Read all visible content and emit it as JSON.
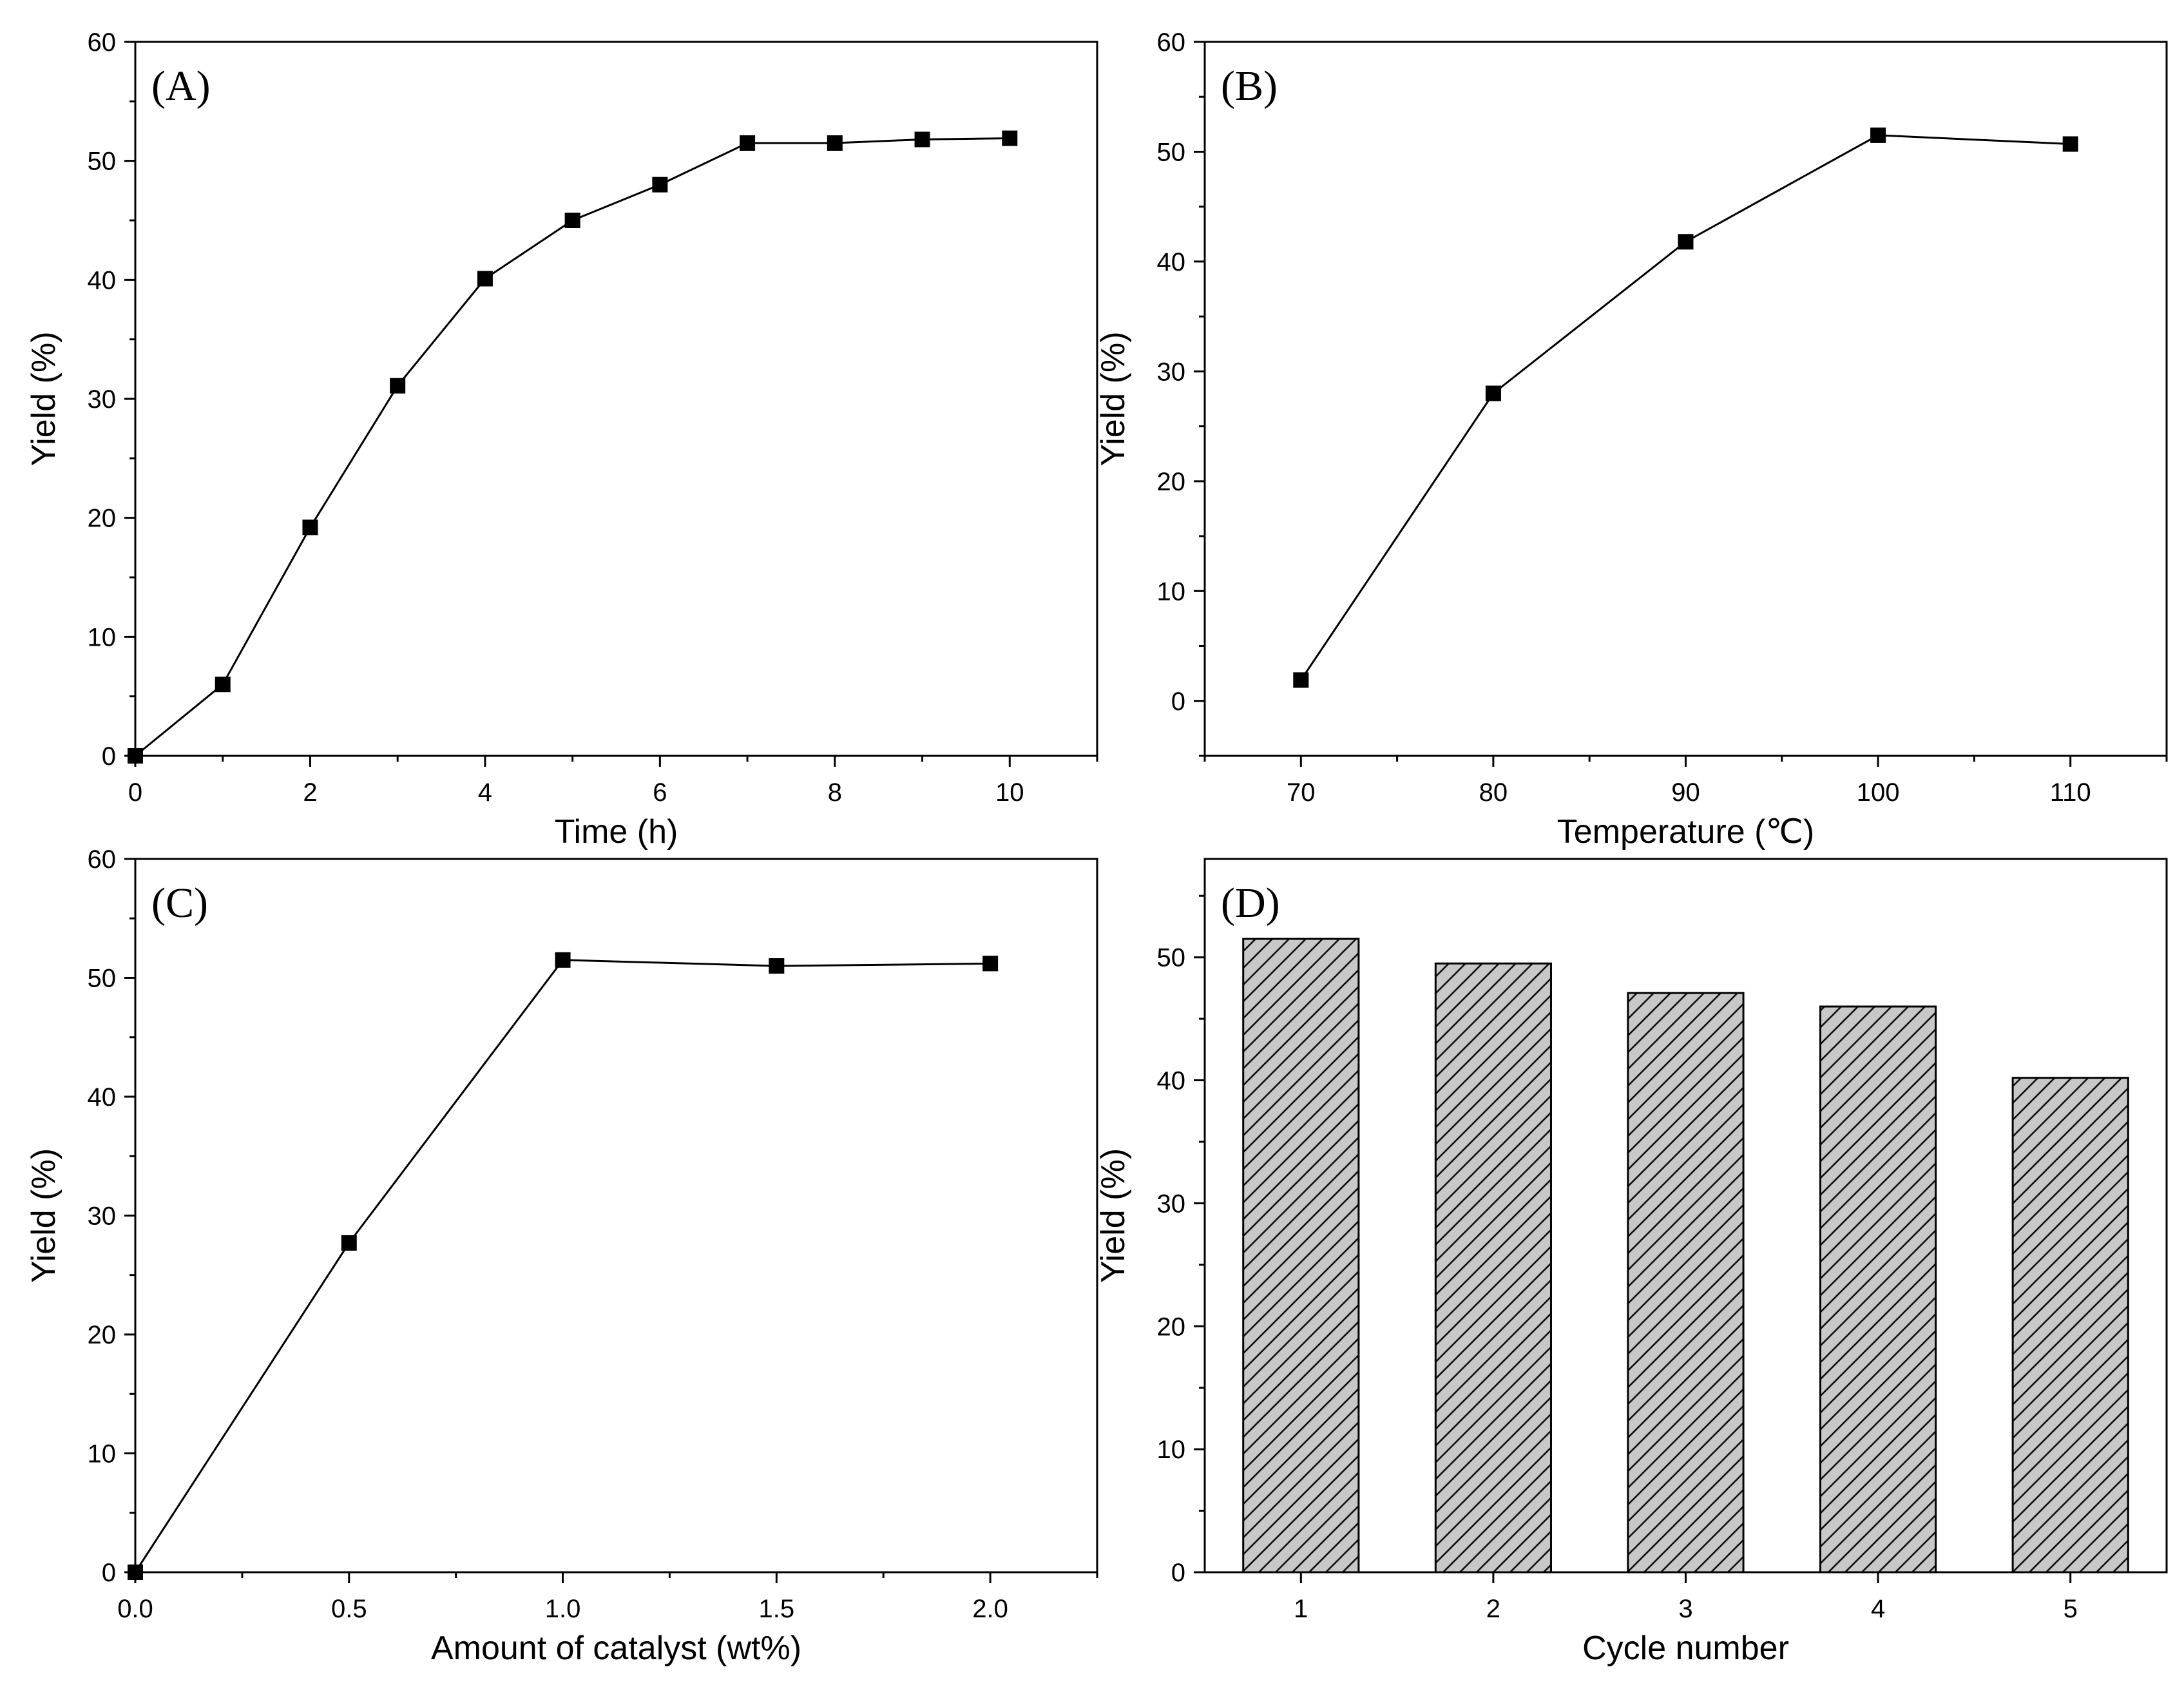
{
  "figure": {
    "panels": [
      "A",
      "B",
      "C",
      "D"
    ]
  },
  "chart_data": [
    {
      "id": "A",
      "type": "line",
      "panel_label": "(A)",
      "xlabel": "Time (h)",
      "ylabel": "Yield (%)",
      "xlim": [
        0,
        11
      ],
      "ylim": [
        0,
        60
      ],
      "xticks": [
        0,
        2,
        4,
        6,
        8,
        10
      ],
      "xtick_labels": [
        "0",
        "2",
        "4",
        "6",
        "8",
        "10"
      ],
      "xminor": [
        1,
        3,
        5,
        7,
        9,
        11
      ],
      "yticks": [
        0,
        10,
        20,
        30,
        40,
        50,
        60
      ],
      "ytick_labels": [
        "0",
        "10",
        "20",
        "30",
        "40",
        "50",
        "60"
      ],
      "yminor": [
        5,
        15,
        25,
        35,
        45,
        55
      ],
      "x": [
        0,
        1,
        2,
        3,
        4,
        5,
        6,
        7,
        8,
        9,
        10
      ],
      "values": [
        0,
        6,
        19.2,
        31.1,
        40.1,
        45,
        48,
        51.5,
        51.5,
        51.8,
        51.9
      ],
      "marker": "square"
    },
    {
      "id": "B",
      "type": "line",
      "panel_label": "(B)",
      "xlabel": "Temperature (℃)",
      "ylabel": "Yield (%)",
      "xlim": [
        65,
        115
      ],
      "ylim": [
        -5,
        60
      ],
      "xticks": [
        70,
        80,
        90,
        100,
        110
      ],
      "xtick_labels": [
        "70",
        "80",
        "90",
        "100",
        "110"
      ],
      "xminor": [
        65,
        75,
        85,
        95,
        105,
        115
      ],
      "yticks": [
        0,
        10,
        20,
        30,
        40,
        50,
        60
      ],
      "ytick_labels": [
        "0",
        "10",
        "20",
        "30",
        "40",
        "50",
        "60"
      ],
      "yminor": [
        -5,
        5,
        15,
        25,
        35,
        45,
        55
      ],
      "x": [
        70,
        80,
        90,
        100,
        110
      ],
      "values": [
        1.9,
        28,
        41.8,
        51.5,
        50.7
      ],
      "marker": "square"
    },
    {
      "id": "C",
      "type": "line",
      "panel_label": "(C)",
      "xlabel": "Amount of catalyst (wt%)",
      "ylabel": "Yield (%)",
      "xlim": [
        0,
        2.25
      ],
      "ylim": [
        0,
        60
      ],
      "xticks": [
        0,
        0.5,
        1,
        1.5,
        2
      ],
      "xtick_labels": [
        "0.0",
        "0.5",
        "1.0",
        "1.5",
        "2.0"
      ],
      "xminor": [
        0.25,
        0.75,
        1.25,
        1.75,
        2.25
      ],
      "yticks": [
        0,
        10,
        20,
        30,
        40,
        50,
        60
      ],
      "ytick_labels": [
        "0",
        "10",
        "20",
        "30",
        "40",
        "50",
        "60"
      ],
      "yminor": [
        5,
        15,
        25,
        35,
        45,
        55
      ],
      "x": [
        0,
        0.5,
        1,
        1.5,
        2
      ],
      "values": [
        0,
        27.7,
        51.5,
        51,
        51.2
      ],
      "marker": "square"
    },
    {
      "id": "D",
      "type": "bar",
      "panel_label": "(D)",
      "xlabel": "Cycle number",
      "ylabel": "Yield (%)",
      "xlim": [
        0.5,
        5.5
      ],
      "ylim": [
        0,
        58
      ],
      "categories": [
        "1",
        "2",
        "3",
        "4",
        "5"
      ],
      "values": [
        51.5,
        49.5,
        47.1,
        46,
        40.2
      ],
      "yticks": [
        0,
        10,
        20,
        30,
        40,
        50
      ],
      "ytick_labels": [
        "0",
        "10",
        "20",
        "30",
        "40",
        "50"
      ],
      "yminor": [
        5,
        15,
        25,
        35,
        45,
        55
      ],
      "bar_fill": "#c8c8c8",
      "bar_hatch": "diagonal"
    }
  ]
}
